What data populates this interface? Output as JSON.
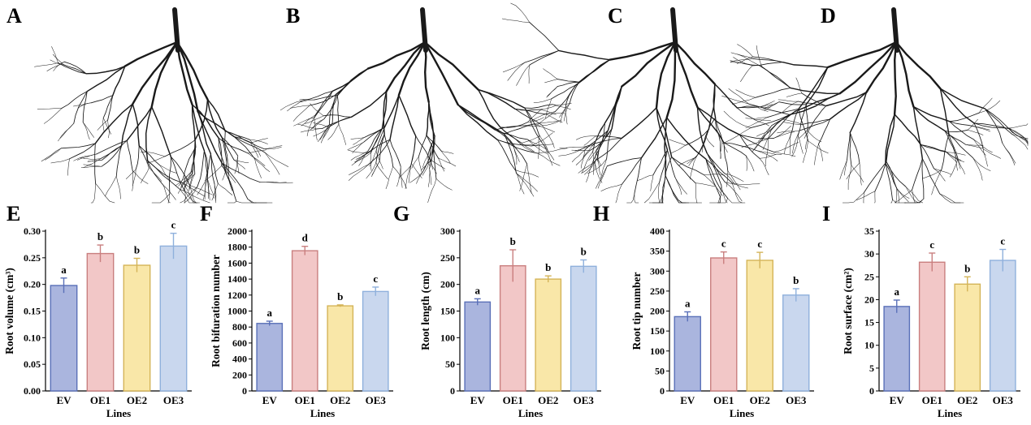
{
  "photo_panels": [
    {
      "label": "A"
    },
    {
      "label": "B"
    },
    {
      "label": "C"
    },
    {
      "label": "D"
    }
  ],
  "colors": {
    "EV": {
      "fill": "#aab5de",
      "stroke": "#5a70b8"
    },
    "OE1": {
      "fill": "#f2c7c7",
      "stroke": "#c97f7f"
    },
    "OE2": {
      "fill": "#f9e7a8",
      "stroke": "#d4b458"
    },
    "OE3": {
      "fill": "#c9d7ee",
      "stroke": "#8fb0dc"
    },
    "roots": "#1a1a1a"
  },
  "chart_data": [
    {
      "panel": "E",
      "type": "bar",
      "categories": [
        "EV",
        "OE1",
        "OE2",
        "OE3"
      ],
      "values": [
        0.198,
        0.258,
        0.236,
        0.272
      ],
      "errors": [
        0.014,
        0.016,
        0.013,
        0.024
      ],
      "letters": [
        "a",
        "b",
        "b",
        "c"
      ],
      "ylim": [
        0,
        0.3
      ],
      "yticks": [
        "0.00",
        "0.05",
        "0.10",
        "0.15",
        "0.20",
        "0.25",
        "0.30"
      ],
      "ylabel": "Root volume (cm³)",
      "xlabel": "Lines"
    },
    {
      "panel": "F",
      "type": "bar",
      "categories": [
        "EV",
        "OE1",
        "OE2",
        "OE3"
      ],
      "values": [
        845,
        1755,
        1065,
        1245
      ],
      "errors": [
        28,
        55,
        12,
        55
      ],
      "letters": [
        "a",
        "d",
        "b",
        "c"
      ],
      "ylim": [
        0,
        2000
      ],
      "yticks": [
        "0",
        "200",
        "400",
        "600",
        "800",
        "1000",
        "1200",
        "1400",
        "1600",
        "1800",
        "2000"
      ],
      "ylabel": "Root bifuration number",
      "xlabel": "Lines"
    },
    {
      "panel": "G",
      "type": "bar",
      "categories": [
        "EV",
        "OE1",
        "OE2",
        "OE3"
      ],
      "values": [
        167,
        235,
        210,
        234
      ],
      "errors": [
        6,
        30,
        6,
        12
      ],
      "letters": [
        "a",
        "b",
        "b",
        "b"
      ],
      "ylim": [
        0,
        300
      ],
      "yticks": [
        "0",
        "50",
        "100",
        "150",
        "200",
        "250",
        "300"
      ],
      "ylabel": "Root length (cm)",
      "xlabel": "Lines"
    },
    {
      "panel": "H",
      "type": "bar",
      "categories": [
        "EV",
        "OE1",
        "OE2",
        "OE3"
      ],
      "values": [
        186,
        333,
        327,
        240
      ],
      "errors": [
        12,
        15,
        20,
        16
      ],
      "letters": [
        "a",
        "c",
        "c",
        "b"
      ],
      "ylim": [
        0,
        400
      ],
      "yticks": [
        "0",
        "50",
        "100",
        "150",
        "200",
        "250",
        "300",
        "350",
        "400"
      ],
      "ylabel": "Root tip number",
      "xlabel": "Lines"
    },
    {
      "panel": "I",
      "type": "bar",
      "categories": [
        "EV",
        "OE1",
        "OE2",
        "OE3"
      ],
      "values": [
        18.5,
        28.2,
        23.4,
        28.6
      ],
      "errors": [
        1.4,
        2.0,
        1.6,
        2.4
      ],
      "letters": [
        "a",
        "c",
        "b",
        "c"
      ],
      "ylim": [
        0,
        35
      ],
      "yticks": [
        "0",
        "5",
        "10",
        "15",
        "20",
        "25",
        "30",
        "35"
      ],
      "ylabel": "Root surface (cm²)",
      "xlabel": "Lines"
    }
  ]
}
